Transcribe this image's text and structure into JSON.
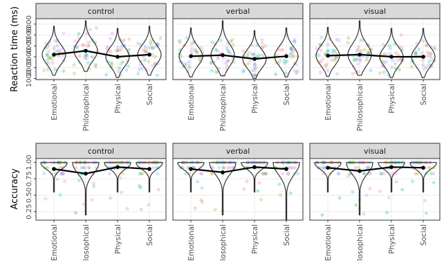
{
  "chart_data": [
    {
      "type": "violin",
      "ylabel": "Reaction time (ms)",
      "categories": [
        "Emotional",
        "Philosophical",
        "Physical",
        "Social"
      ],
      "yticks": [
        1000,
        2000,
        3000,
        4000,
        5000,
        6000
      ],
      "ylim": [
        900,
        6500
      ],
      "facets": [
        {
          "label": "control",
          "means": [
            3200,
            3550,
            3000,
            3200
          ]
        },
        {
          "label": "verbal",
          "means": [
            3050,
            3150,
            2800,
            3050
          ]
        },
        {
          "label": "visual",
          "means": [
            3100,
            3200,
            3000,
            3000
          ]
        }
      ],
      "grid": true
    },
    {
      "type": "violin",
      "ylabel": "Accuracy",
      "categories": [
        "Emotional",
        "Philosophical",
        "Physical",
        "Social"
      ],
      "yticks": [
        0.25,
        0.5,
        0.75,
        1.0
      ],
      "ytick_labels": [
        "0.25",
        "0.50",
        "0.75",
        "1.00"
      ],
      "ylim": [
        0.12,
        1.06
      ],
      "facets": [
        {
          "label": "control",
          "means": [
            0.9,
            0.83,
            0.93,
            0.9
          ]
        },
        {
          "label": "verbal",
          "means": [
            0.9,
            0.85,
            0.93,
            0.9
          ]
        },
        {
          "label": "visual",
          "means": [
            0.92,
            0.87,
            0.93,
            0.92
          ]
        }
      ],
      "grid": true
    }
  ],
  "colors": {
    "strip_bg": "#d9d9d9",
    "strip_border": "#333333",
    "panel_border": "#333333",
    "grid": "#ebebeb",
    "mean_line": "#000000",
    "violin": "#333333",
    "jitter": [
      "#f8766d",
      "#00ba38",
      "#619cff",
      "#c77cff",
      "#00bfc4",
      "#b79f00",
      "#f564e3"
    ]
  }
}
